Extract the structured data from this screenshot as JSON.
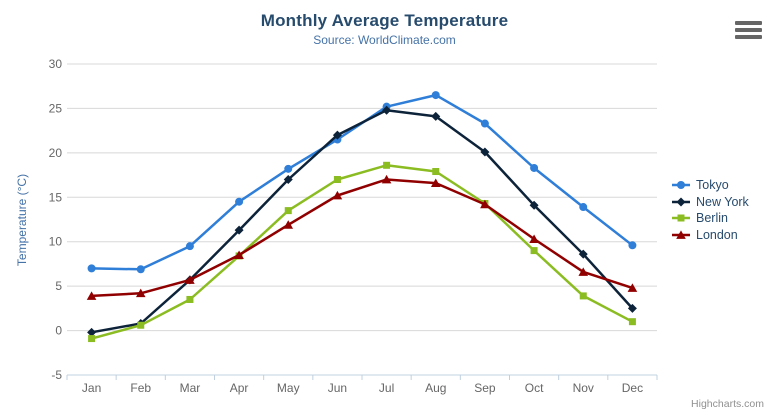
{
  "header": {
    "title": "Monthly Average Temperature",
    "subtitle": "Source: WorldClimate.com"
  },
  "context_menu": {
    "icon": "hamburger-icon"
  },
  "credits": {
    "label": "Highcharts.com"
  },
  "colors": {
    "title": "#274b6d",
    "subtitle": "#4572a7",
    "axis_title": "#4572a7",
    "axis_labels": "#666666",
    "gridline": "#d8d8d8",
    "axis_line": "#c0d0e0",
    "legend_text": "#274b6d",
    "credits_text": "#909090",
    "menu_icon": "#666666"
  },
  "chart_data": {
    "type": "line",
    "title": "Monthly Average Temperature",
    "subtitle": "Source: WorldClimate.com",
    "categories": [
      "Jan",
      "Feb",
      "Mar",
      "Apr",
      "May",
      "Jun",
      "Jul",
      "Aug",
      "Sep",
      "Oct",
      "Nov",
      "Dec"
    ],
    "xlabel": "",
    "ylabel": "Temperature (°C)",
    "ylim": [
      -5,
      30
    ],
    "yticks": [
      -5,
      0,
      5,
      10,
      15,
      20,
      25,
      30
    ],
    "grid": true,
    "legend_position": "right",
    "series": [
      {
        "name": "Tokyo",
        "color": "#2f7ed8",
        "symbol": "circle",
        "values": [
          7.0,
          6.9,
          9.5,
          14.5,
          18.2,
          21.5,
          25.2,
          26.5,
          23.3,
          18.3,
          13.9,
          9.6
        ]
      },
      {
        "name": "New York",
        "color": "#0d233a",
        "symbol": "diamond",
        "values": [
          -0.2,
          0.8,
          5.7,
          11.3,
          17.0,
          22.0,
          24.8,
          24.1,
          20.1,
          14.1,
          8.6,
          2.5
        ]
      },
      {
        "name": "Berlin",
        "color": "#8bbc21",
        "symbol": "square",
        "values": [
          -0.9,
          0.6,
          3.5,
          8.4,
          13.5,
          17.0,
          18.6,
          17.9,
          14.3,
          9.0,
          3.9,
          1.0
        ]
      },
      {
        "name": "London",
        "color": "#910000",
        "symbol": "triangle",
        "values": [
          3.9,
          4.2,
          5.7,
          8.5,
          11.9,
          15.2,
          17.0,
          16.6,
          14.2,
          10.3,
          6.6,
          4.8
        ]
      }
    ]
  }
}
